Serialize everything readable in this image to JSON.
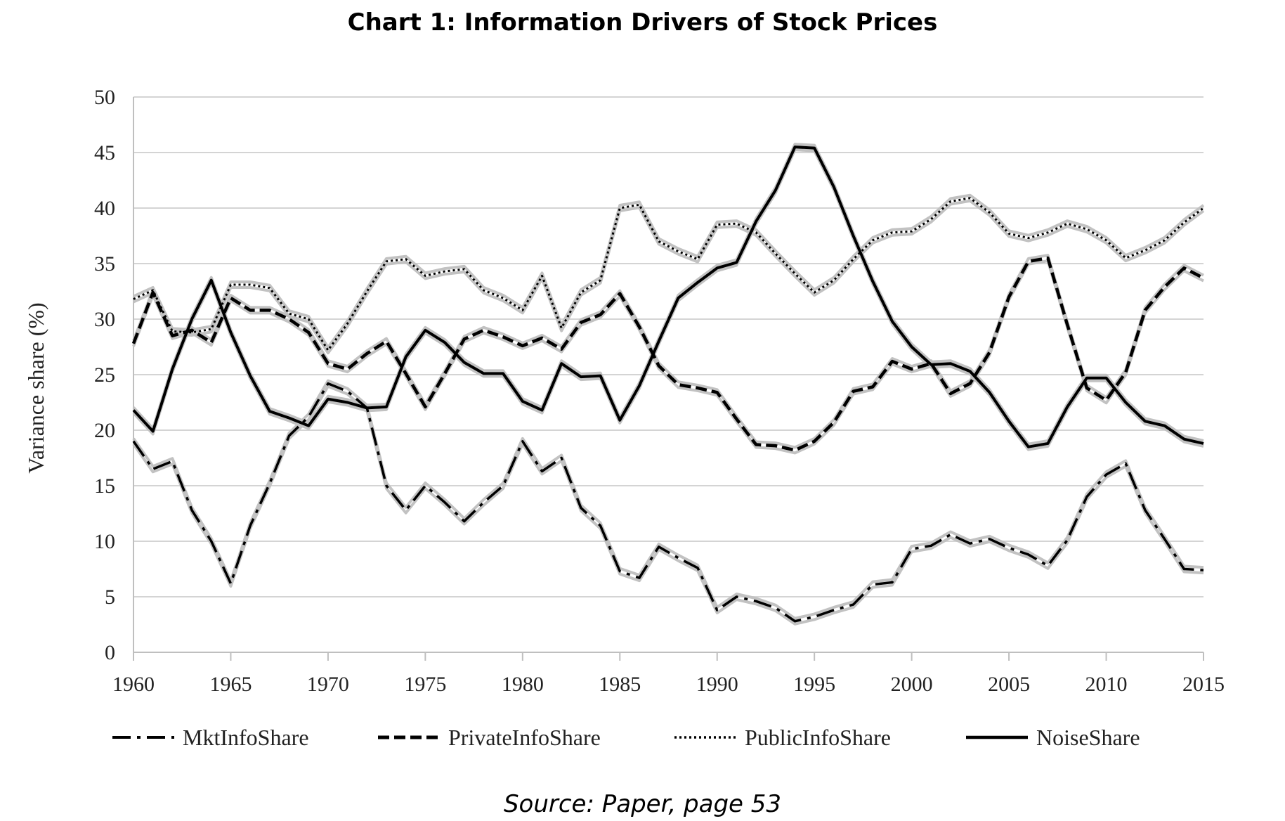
{
  "title": "Chart 1: Information Drivers of Stock Prices",
  "source": "Source: Paper, page 53",
  "chart_data": {
    "type": "line",
    "title": "Chart 1: Information Drivers of Stock Prices",
    "xlabel": "",
    "ylabel": "Variance share (%)",
    "xlim": [
      1960,
      2015
    ],
    "ylim": [
      0,
      50
    ],
    "x_ticks": [
      1960,
      1965,
      1970,
      1975,
      1980,
      1985,
      1990,
      1995,
      2000,
      2005,
      2010,
      2015
    ],
    "y_ticks": [
      0,
      5,
      10,
      15,
      20,
      25,
      30,
      35,
      40,
      45,
      50
    ],
    "grid": "horizontal",
    "legend_position": "bottom",
    "x": [
      1960,
      1961,
      1962,
      1963,
      1964,
      1965,
      1966,
      1967,
      1968,
      1969,
      1970,
      1971,
      1972,
      1973,
      1974,
      1975,
      1976,
      1977,
      1978,
      1979,
      1980,
      1981,
      1982,
      1983,
      1984,
      1985,
      1986,
      1987,
      1988,
      1989,
      1990,
      1991,
      1992,
      1993,
      1994,
      1995,
      1996,
      1997,
      1998,
      1999,
      2000,
      2001,
      2002,
      2003,
      2004,
      2005,
      2006,
      2007,
      2008,
      2009,
      2010,
      2011,
      2012,
      2013,
      2014,
      2015
    ],
    "series": [
      {
        "name": "MktInfoShare",
        "style": "dash-dot",
        "values": [
          19,
          16.5,
          17.2,
          12.8,
          10,
          6.2,
          11.4,
          15.2,
          19.5,
          21.2,
          24.2,
          23.5,
          22,
          15,
          12.8,
          15,
          13.5,
          11.8,
          13.5,
          15,
          19,
          16.3,
          17.5,
          13,
          11.4,
          7.3,
          6.7,
          9.5,
          8.5,
          7.6,
          3.8,
          5,
          4.6,
          4,
          2.8,
          3.2,
          3.8,
          4.3,
          6.1,
          6.3,
          9.3,
          9.6,
          10.6,
          9.8,
          10.2,
          9.4,
          8.8,
          7.8,
          10.1,
          14,
          16,
          17,
          12.8,
          10.2,
          7.5,
          7.4
        ]
      },
      {
        "name": "PrivateInfoShare",
        "style": "dashed",
        "values": [
          27.8,
          32.4,
          28.5,
          29,
          27.9,
          31.9,
          30.8,
          30.8,
          30,
          28.8,
          26,
          25.5,
          26.9,
          28,
          25.1,
          22.1,
          25.1,
          28.2,
          29,
          28.4,
          27.6,
          28.3,
          27.3,
          29.7,
          30.4,
          32.3,
          29.3,
          25.8,
          24.1,
          23.8,
          23.4,
          21,
          18.7,
          18.6,
          18.2,
          19,
          20.7,
          23.5,
          23.9,
          26.2,
          25.5,
          26,
          23.3,
          24.2,
          27,
          32,
          35.2,
          35.5,
          29.5,
          23.8,
          22.7,
          25.2,
          30.8,
          32.9,
          34.6,
          33.7
        ]
      },
      {
        "name": "PublicInfoShare",
        "style": "dotted",
        "values": [
          31.8,
          32.6,
          28.9,
          28.8,
          29.1,
          33.1,
          33.1,
          32.8,
          30.5,
          30,
          27.2,
          29.6,
          32.5,
          35.2,
          35.4,
          33.9,
          34.3,
          34.5,
          32.6,
          31.9,
          30.8,
          33.9,
          29.2,
          32.4,
          33.5,
          40,
          40.3,
          37,
          36.1,
          35.4,
          38.5,
          38.6,
          37.8,
          35.9,
          34.1,
          32.4,
          33.5,
          35.4,
          37.1,
          37.8,
          37.9,
          39,
          40.6,
          40.9,
          39.6,
          37.7,
          37.3,
          37.8,
          38.6,
          38.1,
          37.1,
          35.5,
          36.2,
          37.1,
          38.7,
          40
        ]
      },
      {
        "name": "NoiseShare",
        "style": "solid",
        "values": [
          21.8,
          19.9,
          25.5,
          30,
          33.5,
          28.8,
          24.9,
          21.7,
          21.1,
          20.4,
          22.8,
          22.5,
          22,
          22.1,
          26.6,
          29,
          27.9,
          26.1,
          25.1,
          25.1,
          22.6,
          21.8,
          26,
          24.8,
          24.9,
          20.9,
          24,
          28,
          31.9,
          33.3,
          34.6,
          35.1,
          38.8,
          41.6,
          45.5,
          45.4,
          41.9,
          37.5,
          33.4,
          29.8,
          27.5,
          25.9,
          26,
          25.3,
          23.4,
          20.8,
          18.5,
          18.8,
          22.1,
          24.7,
          24.7,
          22.5,
          20.8,
          20.4,
          19.2,
          18.8
        ]
      }
    ]
  }
}
